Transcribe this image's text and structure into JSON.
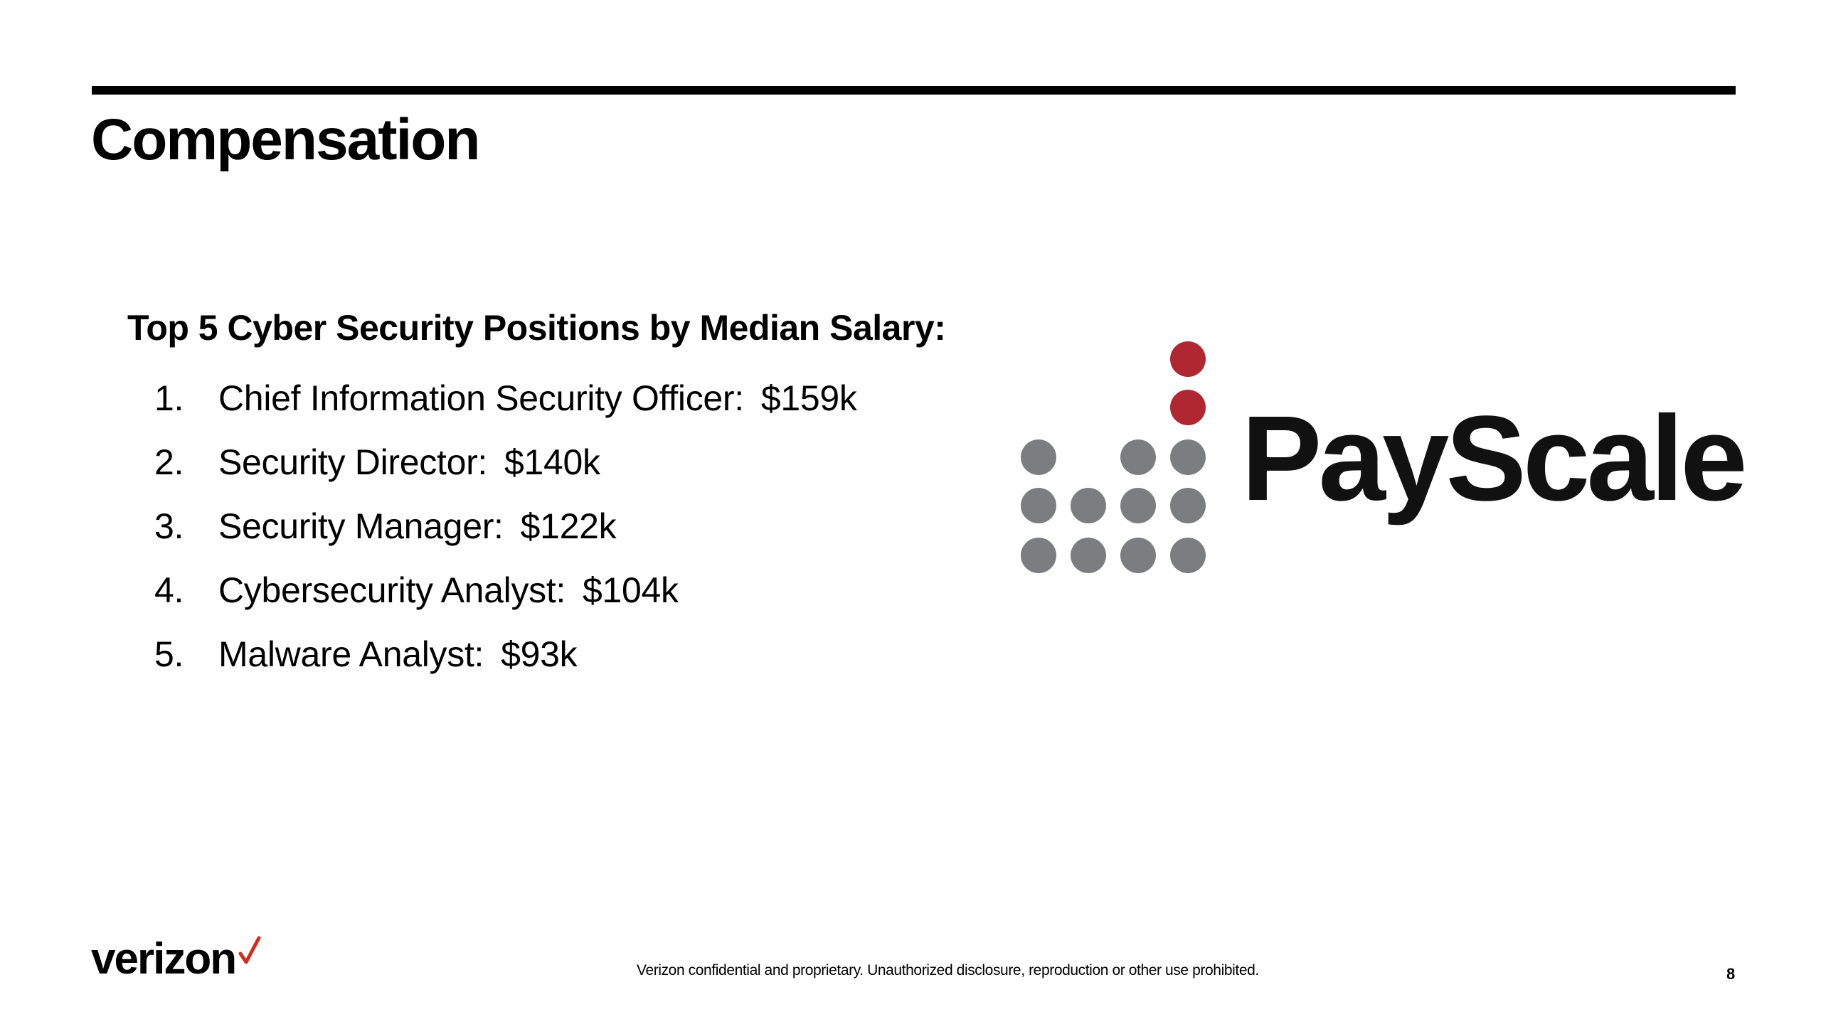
{
  "slide": {
    "title": "Compensation"
  },
  "content": {
    "heading": "Top 5 Cyber Security Positions by Median Salary:",
    "positions": [
      {
        "number": "1.",
        "title": "Chief Information Security Officer:",
        "salary": "$159k"
      },
      {
        "number": "2.",
        "title": "Security Director:",
        "salary": "$140k"
      },
      {
        "number": "3.",
        "title": "Security Manager:",
        "salary": "$122k"
      },
      {
        "number": "4.",
        "title": "Cybersecurity Analyst:",
        "salary": "$104k"
      },
      {
        "number": "5.",
        "title": "Malware Analyst:",
        "salary": "$93k"
      }
    ]
  },
  "logo": {
    "name": "PayScale",
    "dot_colors": {
      "accent": "#B12731",
      "neutral": "#7B7D80"
    }
  },
  "footer": {
    "brand": "verizon",
    "brand_mark": "checkmark-icon",
    "brand_accent": "#D52B1E",
    "note": "Verizon confidential and proprietary. Unauthorized disclosure, reproduction or other use prohibited.",
    "page_number": "8"
  }
}
